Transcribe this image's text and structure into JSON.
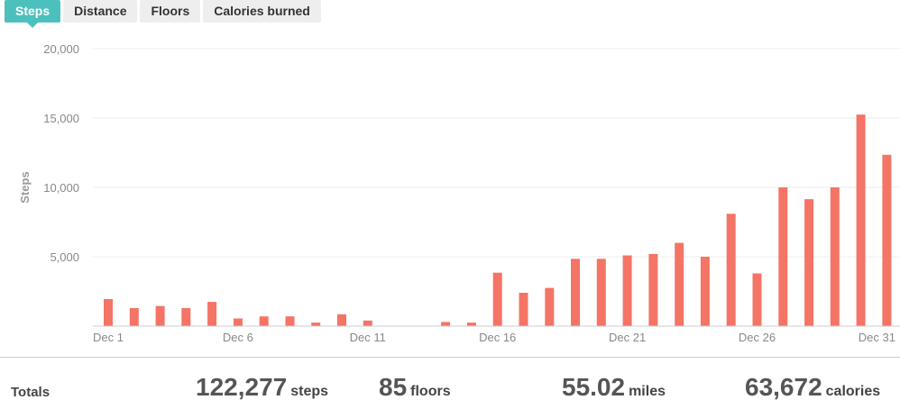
{
  "tabs": [
    {
      "label": "Steps",
      "active": true
    },
    {
      "label": "Distance",
      "active": false
    },
    {
      "label": "Floors",
      "active": false
    },
    {
      "label": "Calories burned",
      "active": false
    }
  ],
  "colors": {
    "bar": "#f47465",
    "accent": "#4cc0bd",
    "grid": "#eeeeee"
  },
  "chart_data": {
    "type": "bar",
    "title": "",
    "xlabel": "",
    "ylabel": "Steps",
    "ylim": [
      0,
      20000
    ],
    "yticks": [
      "5,000",
      "10,000",
      "15,000",
      "20,000"
    ],
    "xtick_labels": [
      "Dec 1",
      "Dec 6",
      "Dec 11",
      "Dec 16",
      "Dec 21",
      "Dec 26",
      "Dec 31"
    ],
    "grid": true,
    "categories": [
      "Dec 1",
      "Dec 2",
      "Dec 3",
      "Dec 4",
      "Dec 5",
      "Dec 6",
      "Dec 7",
      "Dec 8",
      "Dec 9",
      "Dec 10",
      "Dec 11",
      "Dec 12",
      "Dec 13",
      "Dec 14",
      "Dec 15",
      "Dec 16",
      "Dec 17",
      "Dec 18",
      "Dec 19",
      "Dec 20",
      "Dec 21",
      "Dec 22",
      "Dec 23",
      "Dec 24",
      "Dec 25",
      "Dec 26",
      "Dec 27",
      "Dec 28",
      "Dec 29",
      "Dec 30",
      "Dec 31"
    ],
    "values": [
      1950,
      1300,
      1450,
      1300,
      1750,
      550,
      700,
      700,
      250,
      850,
      400,
      0,
      0,
      300,
      250,
      3850,
      2400,
      2750,
      4850,
      4850,
      5100,
      5200,
      6000,
      5000,
      8100,
      3800,
      10000,
      9150,
      10000,
      15250,
      12350
    ]
  },
  "totals": {
    "label": "Totals",
    "items": [
      {
        "value": "122,277",
        "unit": "steps"
      },
      {
        "value": "85",
        "unit": "floors"
      },
      {
        "value": "55.02",
        "unit": "miles"
      },
      {
        "value": "63,672",
        "unit": "calories"
      }
    ]
  }
}
